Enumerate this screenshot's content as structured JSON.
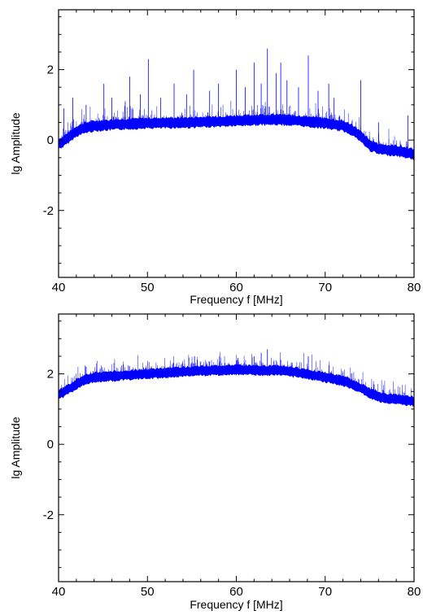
{
  "chart_data": [
    {
      "type": "line",
      "title": "",
      "xlabel": "Frequency f [MHz]",
      "ylabel": "lg Amplitude",
      "xlim": [
        40,
        80
      ],
      "ylim": [
        -3.9,
        3.7
      ],
      "xticks": [
        40,
        50,
        60,
        70,
        80
      ],
      "yticks": [
        -2,
        0,
        2
      ],
      "ytick_labels": [
        "-2",
        "0",
        "2"
      ],
      "grid": false,
      "color": "#0000ff",
      "series": [
        {
          "band_x": [
            40,
            40.5,
            41,
            42,
            43,
            44,
            45,
            47,
            50,
            55,
            60,
            63,
            65,
            67,
            70,
            72,
            73,
            74,
            75,
            76,
            77,
            78,
            79,
            80
          ],
          "band_mean": [
            -0.1,
            -0.05,
            0.05,
            0.25,
            0.35,
            0.4,
            0.42,
            0.45,
            0.48,
            0.5,
            0.55,
            0.58,
            0.58,
            0.55,
            0.48,
            0.4,
            0.3,
            0.1,
            -0.15,
            -0.25,
            -0.28,
            -0.3,
            -0.35,
            -0.4
          ],
          "band_halfwidth": 0.13,
          "spikes": [
            {
              "x": 40.6,
              "y": 0.9
            },
            {
              "x": 41.6,
              "y": 1.2
            },
            {
              "x": 43.1,
              "y": 1.0
            },
            {
              "x": 45.1,
              "y": 1.6
            },
            {
              "x": 46.0,
              "y": 1.2
            },
            {
              "x": 47.5,
              "y": 1.1
            },
            {
              "x": 48.0,
              "y": 1.8
            },
            {
              "x": 49.2,
              "y": 1.3
            },
            {
              "x": 50.1,
              "y": 2.3
            },
            {
              "x": 51.5,
              "y": 1.2
            },
            {
              "x": 53.0,
              "y": 1.6
            },
            {
              "x": 54.4,
              "y": 1.3
            },
            {
              "x": 55.2,
              "y": 2.0
            },
            {
              "x": 57.0,
              "y": 1.4
            },
            {
              "x": 58.0,
              "y": 1.6
            },
            {
              "x": 60.0,
              "y": 2.0
            },
            {
              "x": 61.0,
              "y": 1.5
            },
            {
              "x": 62.0,
              "y": 2.2
            },
            {
              "x": 62.8,
              "y": 1.6
            },
            {
              "x": 63.5,
              "y": 2.6
            },
            {
              "x": 64.5,
              "y": 1.9
            },
            {
              "x": 65.0,
              "y": 2.2
            },
            {
              "x": 65.7,
              "y": 1.7
            },
            {
              "x": 67.0,
              "y": 1.5
            },
            {
              "x": 68.1,
              "y": 2.4
            },
            {
              "x": 69.2,
              "y": 1.4
            },
            {
              "x": 70.4,
              "y": 1.6
            },
            {
              "x": 71.0,
              "y": 1.2
            },
            {
              "x": 74.0,
              "y": 1.7
            },
            {
              "x": 76.0,
              "y": 0.5
            },
            {
              "x": 79.3,
              "y": 0.7
            }
          ]
        }
      ]
    },
    {
      "type": "line",
      "title": "",
      "xlabel": "Frequency f [MHz]",
      "ylabel": "lg Amplitude",
      "xlim": [
        40,
        80
      ],
      "ylim": [
        -3.9,
        3.7
      ],
      "xticks": [
        40,
        50,
        60,
        70,
        80
      ],
      "yticks": [
        -2,
        0,
        2
      ],
      "ytick_labels": [
        "-2",
        "0",
        "2"
      ],
      "grid": false,
      "color": "#0000ff",
      "series": [
        {
          "band_x": [
            40,
            41,
            42,
            43,
            44,
            45,
            47,
            50,
            55,
            60,
            63,
            65,
            68,
            70,
            72,
            73,
            74,
            75,
            76,
            77,
            78,
            79,
            80
          ],
          "band_mean": [
            1.4,
            1.55,
            1.7,
            1.85,
            1.9,
            1.92,
            1.95,
            2.0,
            2.08,
            2.12,
            2.1,
            2.1,
            2.0,
            1.9,
            1.8,
            1.7,
            1.6,
            1.45,
            1.35,
            1.3,
            1.28,
            1.25,
            1.22
          ],
          "band_halfwidth": 0.12,
          "spikes": [
            {
              "x": 55.3,
              "y": 2.5
            },
            {
              "x": 57.0,
              "y": 2.35
            },
            {
              "x": 60.2,
              "y": 2.45
            },
            {
              "x": 62.0,
              "y": 2.5
            },
            {
              "x": 62.8,
              "y": 2.6
            },
            {
              "x": 63.5,
              "y": 2.7
            },
            {
              "x": 65.0,
              "y": 2.4
            },
            {
              "x": 68.1,
              "y": 2.5
            },
            {
              "x": 75.5,
              "y": 1.7
            },
            {
              "x": 76.5,
              "y": 1.55
            }
          ]
        }
      ]
    }
  ]
}
